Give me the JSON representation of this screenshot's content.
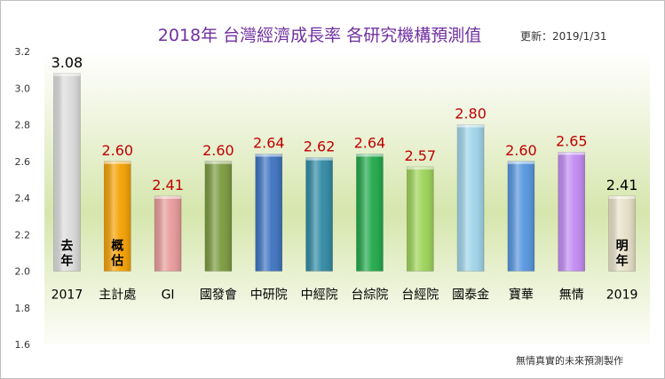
{
  "chart_data": {
    "type": "bar",
    "title": "2018年 台灣經濟成長率 各研究機構預測值",
    "update_note": "更新：2019/1/31",
    "footer": "無情真實的未來預測製作",
    "ylim": [
      1.6,
      3.2
    ],
    "yticks": [
      "1.6",
      "1.8",
      "2.0",
      "2.2",
      "2.4",
      "2.6",
      "2.8",
      "3.0",
      "3.2"
    ],
    "baseline": 2.0,
    "grid": false,
    "legend": "none",
    "categories": [
      "2017",
      "主計處",
      "GI",
      "國發會",
      "中研院",
      "中經院",
      "台綜院",
      "台經院",
      "國泰金",
      "寶華",
      "無情",
      "2019"
    ],
    "values": [
      3.08,
      2.6,
      2.41,
      2.6,
      2.64,
      2.62,
      2.64,
      2.57,
      2.8,
      2.6,
      2.65,
      2.41
    ],
    "value_labels": [
      "3.08",
      "2.60",
      "2.41",
      "2.60",
      "2.64",
      "2.62",
      "2.64",
      "2.57",
      "2.80",
      "2.60",
      "2.65",
      "2.41"
    ],
    "bar_colors": [
      "#dcdcdc",
      "#f5a000",
      "#e89a9a",
      "#7a9a3e",
      "#3c72c0",
      "#2f89a3",
      "#1fa84a",
      "#9dd358",
      "#9fd4ea",
      "#5595df",
      "#c18af2",
      "#e8e0c8"
    ],
    "label_colors": [
      "#000000",
      "#c00000",
      "#c00000",
      "#c00000",
      "#c00000",
      "#c00000",
      "#c00000",
      "#c00000",
      "#c00000",
      "#c00000",
      "#c00000",
      "#000000"
    ],
    "bar_notes": [
      "去年",
      "概估",
      "",
      "",
      "",
      "",
      "",
      "",
      "",
      "",
      "",
      "明年"
    ]
  }
}
